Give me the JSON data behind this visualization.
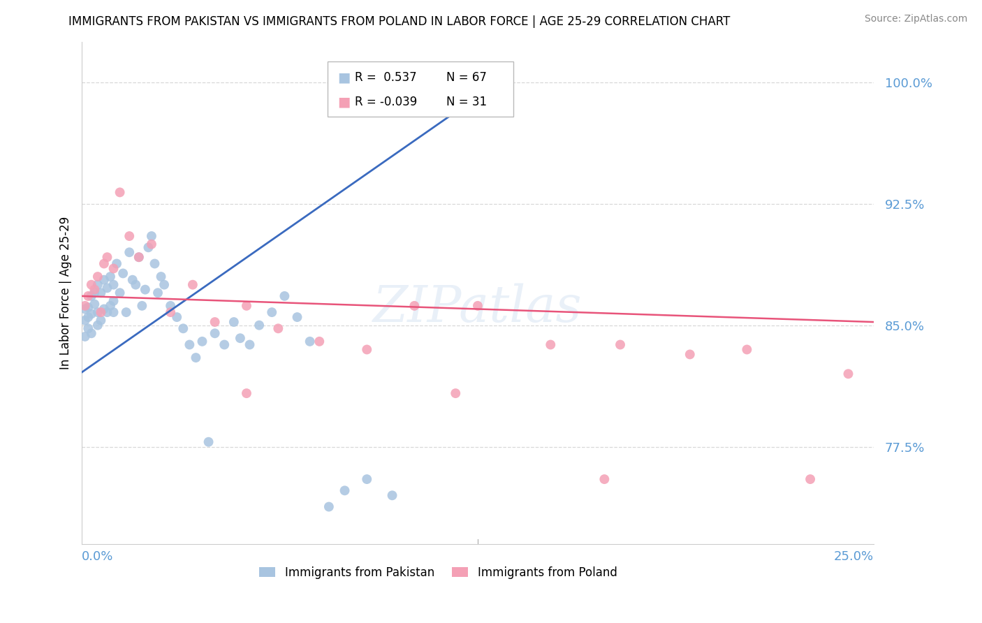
{
  "title": "IMMIGRANTS FROM PAKISTAN VS IMMIGRANTS FROM POLAND IN LABOR FORCE | AGE 25-29 CORRELATION CHART",
  "source": "Source: ZipAtlas.com",
  "ylabel": "In Labor Force | Age 25-29",
  "r_pakistan": 0.537,
  "n_pakistan": 67,
  "r_poland": -0.039,
  "n_poland": 31,
  "color_pakistan": "#a8c4e0",
  "color_poland": "#f4a0b5",
  "color_pakistan_line": "#3a6abf",
  "color_poland_line": "#e8547a",
  "color_axis_labels": "#5b9bd5",
  "watermark": "ZIPatlas",
  "xmin": 0.0,
  "xmax": 0.25,
  "ymin": 0.715,
  "ymax": 1.025,
  "pakistan_x": [
    0.001,
    0.001,
    0.001,
    0.002,
    0.002,
    0.002,
    0.003,
    0.003,
    0.003,
    0.004,
    0.004,
    0.005,
    0.005,
    0.005,
    0.006,
    0.006,
    0.007,
    0.007,
    0.008,
    0.008,
    0.009,
    0.009,
    0.01,
    0.01,
    0.01,
    0.011,
    0.012,
    0.013,
    0.014,
    0.015,
    0.016,
    0.017,
    0.018,
    0.019,
    0.02,
    0.021,
    0.022,
    0.023,
    0.024,
    0.025,
    0.026,
    0.028,
    0.03,
    0.032,
    0.034,
    0.036,
    0.038,
    0.04,
    0.042,
    0.045,
    0.048,
    0.05,
    0.053,
    0.056,
    0.06,
    0.064,
    0.068,
    0.072,
    0.078,
    0.083,
    0.09,
    0.098,
    0.107,
    0.115,
    0.122,
    0.128,
    0.133
  ],
  "pakistan_y": [
    0.853,
    0.86,
    0.843,
    0.855,
    0.848,
    0.861,
    0.857,
    0.868,
    0.845,
    0.863,
    0.87,
    0.85,
    0.858,
    0.875,
    0.853,
    0.87,
    0.86,
    0.878,
    0.858,
    0.873,
    0.862,
    0.88,
    0.865,
    0.858,
    0.875,
    0.888,
    0.87,
    0.882,
    0.858,
    0.895,
    0.878,
    0.875,
    0.892,
    0.862,
    0.872,
    0.898,
    0.905,
    0.888,
    0.87,
    0.88,
    0.875,
    0.862,
    0.855,
    0.848,
    0.838,
    0.83,
    0.84,
    0.778,
    0.845,
    0.838,
    0.852,
    0.842,
    0.838,
    0.85,
    0.858,
    0.868,
    0.855,
    0.84,
    0.738,
    0.748,
    0.755,
    0.745,
    0.997,
    0.997,
    0.997,
    0.997,
    0.998
  ],
  "poland_x": [
    0.001,
    0.002,
    0.003,
    0.004,
    0.005,
    0.006,
    0.007,
    0.008,
    0.01,
    0.012,
    0.015,
    0.018,
    0.022,
    0.028,
    0.035,
    0.042,
    0.052,
    0.062,
    0.075,
    0.09,
    0.105,
    0.125,
    0.148,
    0.17,
    0.192,
    0.21,
    0.23,
    0.242,
    0.052,
    0.118,
    0.165
  ],
  "poland_y": [
    0.862,
    0.868,
    0.875,
    0.872,
    0.88,
    0.858,
    0.888,
    0.892,
    0.885,
    0.932,
    0.905,
    0.892,
    0.9,
    0.858,
    0.875,
    0.852,
    0.862,
    0.848,
    0.84,
    0.835,
    0.862,
    0.862,
    0.838,
    0.838,
    0.832,
    0.835,
    0.755,
    0.82,
    0.808,
    0.808,
    0.755
  ],
  "pak_line_x0": 0.0,
  "pak_line_y0": 0.821,
  "pak_line_x1": 0.133,
  "pak_line_y1": 1.002,
  "pol_line_x0": 0.0,
  "pol_line_y0": 0.868,
  "pol_line_x1": 0.25,
  "pol_line_y1": 0.852
}
